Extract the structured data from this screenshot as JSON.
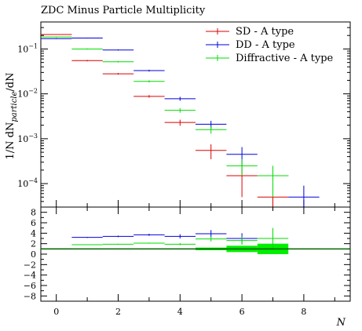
{
  "chart_data": {
    "type": "scatter",
    "title": "ZDC Minus Particle Multiplicity",
    "ylabel": "1/N dN_particle/dN",
    "xlabel": "N",
    "x_range": [
      -0.5,
      9.5
    ],
    "y_range_log": [
      3e-05,
      0.4
    ],
    "ratio_y_range": [
      -9,
      9
    ],
    "legend_position": "top-right",
    "x_ticks": [
      0,
      2,
      4,
      6,
      8
    ],
    "y_ticks_log": [
      {
        "value": 0.0001,
        "base": "10",
        "exp": "−4"
      },
      {
        "value": 0.001,
        "base": "10",
        "exp": "−3"
      },
      {
        "value": 0.01,
        "base": "10",
        "exp": "−2"
      },
      {
        "value": 0.1,
        "base": "10",
        "exp": "−1"
      }
    ],
    "ratio_ticks": [
      8,
      6,
      4,
      2,
      0,
      -2,
      -4,
      -6,
      -8
    ],
    "series": [
      {
        "name": "SD - A type",
        "color": "#dd0000",
        "points": [
          {
            "x": 0,
            "y": 0.21,
            "err": 0.004
          },
          {
            "x": 1,
            "y": 0.055,
            "err": 0.002
          },
          {
            "x": 2,
            "y": 0.028,
            "err": 0.0012
          },
          {
            "x": 3,
            "y": 0.0088,
            "err": 0.0006
          },
          {
            "x": 4,
            "y": 0.0023,
            "err": 0.00035
          },
          {
            "x": 5,
            "y": 0.00055,
            "err": 0.0002
          },
          {
            "x": 6,
            "y": 0.00015,
            "err": 0.0001
          },
          {
            "x": 7,
            "y": 5e-05,
            "err": 4e-05
          }
        ]
      },
      {
        "name": "DD - A type",
        "color": "#0000dd",
        "points": [
          {
            "x": 0,
            "y": 0.17,
            "err": 0.004
          },
          {
            "x": 1,
            "y": 0.175,
            "err": 0.004
          },
          {
            "x": 2,
            "y": 0.095,
            "err": 0.003
          },
          {
            "x": 3,
            "y": 0.033,
            "err": 0.0015
          },
          {
            "x": 4,
            "y": 0.0078,
            "err": 0.0008
          },
          {
            "x": 5,
            "y": 0.0021,
            "err": 0.0004
          },
          {
            "x": 6,
            "y": 0.00045,
            "err": 0.0002
          },
          {
            "x": 7,
            "y": 0.00015,
            "err": 9e-05
          },
          {
            "x": 8,
            "y": 5e-05,
            "err": 4e-05
          }
        ]
      },
      {
        "name": "Diffractive - A type",
        "color": "#00dd00",
        "points": [
          {
            "x": 0,
            "y": 0.185,
            "err": 0.004
          },
          {
            "x": 1,
            "y": 0.1,
            "err": 0.003
          },
          {
            "x": 2,
            "y": 0.052,
            "err": 0.002
          },
          {
            "x": 3,
            "y": 0.019,
            "err": 0.001
          },
          {
            "x": 4,
            "y": 0.0043,
            "err": 0.0005
          },
          {
            "x": 5,
            "y": 0.0016,
            "err": 0.0003
          },
          {
            "x": 6,
            "y": 0.00025,
            "err": 0.0001
          },
          {
            "x": 7,
            "y": 0.00015,
            "err": 0.0001
          }
        ]
      }
    ],
    "ratio_series": [
      {
        "name": "SD - A type",
        "color": "#dd0000",
        "points": [
          {
            "x": 0,
            "y": 1,
            "err": 0
          },
          {
            "x": 1,
            "y": 1,
            "err": 0
          },
          {
            "x": 2,
            "y": 1,
            "err": 0
          },
          {
            "x": 3,
            "y": 1,
            "err": 0
          },
          {
            "x": 4,
            "y": 1,
            "err": 0
          },
          {
            "x": 5,
            "y": 1,
            "err": 0
          },
          {
            "x": 6,
            "y": 1,
            "err": 0
          },
          {
            "x": 7,
            "y": 1,
            "err": 0
          },
          {
            "x": 8,
            "y": 1,
            "err": 0
          }
        ]
      },
      {
        "name": "DD - A type",
        "color": "#0000dd",
        "points": [
          {
            "x": 0,
            "y": 1,
            "err": 0
          },
          {
            "x": 1,
            "y": 3.2,
            "err": 0.1
          },
          {
            "x": 2,
            "y": 3.4,
            "err": 0.15
          },
          {
            "x": 3,
            "y": 3.7,
            "err": 0.2
          },
          {
            "x": 4,
            "y": 3.4,
            "err": 0.4
          },
          {
            "x": 5,
            "y": 3.9,
            "err": 0.7
          },
          {
            "x": 6,
            "y": 3.0,
            "err": 1.0
          }
        ]
      },
      {
        "name": "Diffractive - A type",
        "color": "#00dd00",
        "points": [
          {
            "x": 0,
            "y": 1,
            "err": 0
          },
          {
            "x": 1,
            "y": 1.8,
            "err": 0.05
          },
          {
            "x": 2,
            "y": 1.9,
            "err": 0.08
          },
          {
            "x": 3,
            "y": 2.1,
            "err": 0.1
          },
          {
            "x": 4,
            "y": 1.9,
            "err": 0.2
          },
          {
            "x": 5,
            "y": 2.9,
            "err": 0.5
          },
          {
            "x": 6,
            "y": 2.6,
            "err": 0.8
          },
          {
            "x": 7,
            "y": 3.0,
            "err": 2.0
          }
        ]
      }
    ],
    "ratio_band": {
      "color": "#00ee00",
      "points": [
        {
          "x": 5,
          "y": 1,
          "err": 0.25
        },
        {
          "x": 6,
          "y": 1,
          "err": 0.6
        },
        {
          "x": 7,
          "y": 1,
          "err": 1.0
        }
      ]
    }
  }
}
